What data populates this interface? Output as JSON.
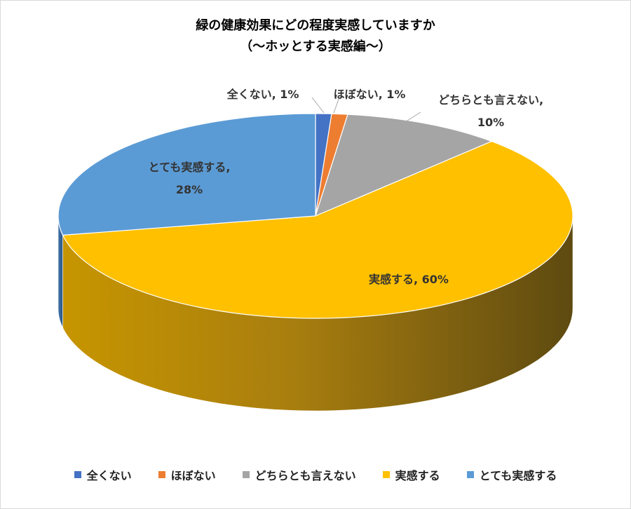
{
  "chart_data": {
    "type": "pie",
    "title": "緑の健康効果にどの程度実感していますか",
    "subtitle": "（～ホッとする実感編～）",
    "series": [
      {
        "name": "全くない",
        "value": 1,
        "label": "全くない, 1%",
        "label_lines": [
          "全くない, 1%"
        ],
        "color": "#4472c4"
      },
      {
        "name": "ほぼない",
        "value": 1,
        "label": "ほぼない, 1%",
        "label_lines": [
          "ほぼない, 1%"
        ],
        "color": "#ed7d31"
      },
      {
        "name": "どちらとも言えない",
        "value": 10,
        "label": "どちらとも言えない, 10%",
        "label_lines": [
          "どちらとも言えない,",
          "10%"
        ],
        "color": "#a5a5a5"
      },
      {
        "name": "実感する",
        "value": 60,
        "label": "実感する, 60%",
        "label_lines": [
          "実感する, 60%"
        ],
        "color": "#ffc000"
      },
      {
        "name": "とても実感する",
        "value": 28,
        "label": "とても実感する, 28%",
        "label_lines": [
          "とても実感する,",
          "28%"
        ],
        "color": "#5b9bd5"
      }
    ],
    "legend_position": "bottom",
    "style": "3d-pie"
  }
}
